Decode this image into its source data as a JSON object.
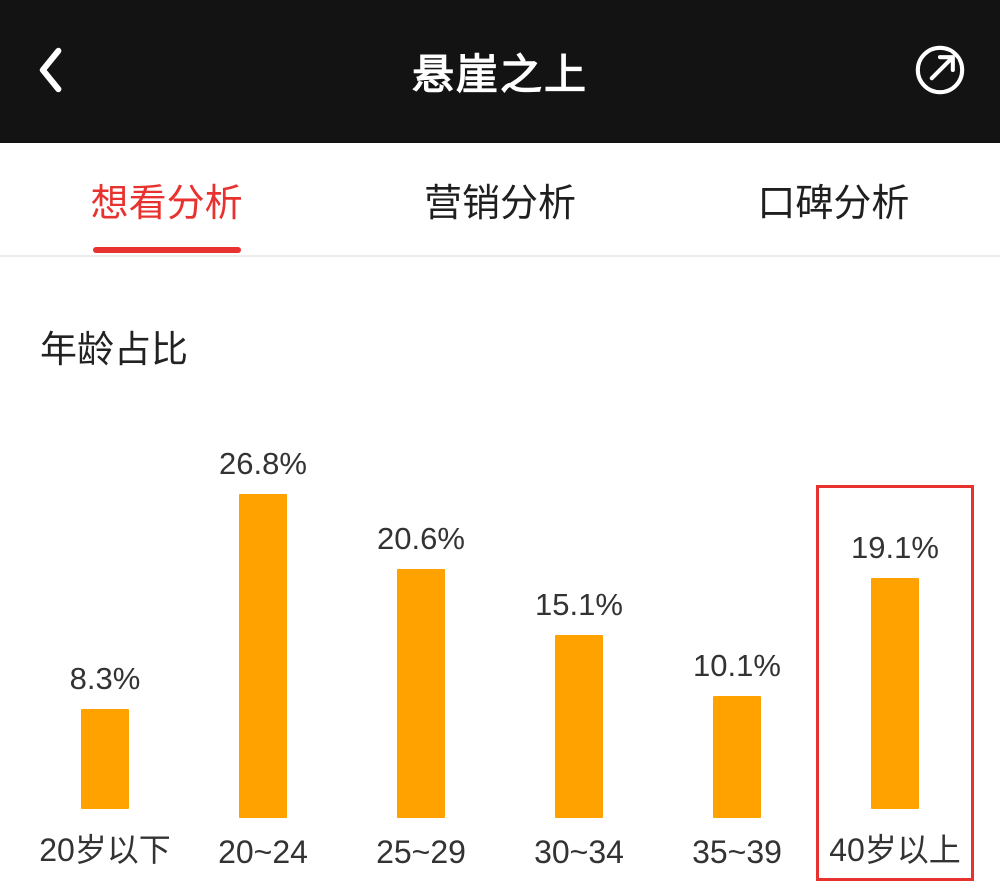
{
  "header": {
    "title": "悬崖之上"
  },
  "tabs": [
    {
      "label": "想看分析",
      "active": true
    },
    {
      "label": "营销分析",
      "active": false
    },
    {
      "label": "口碑分析",
      "active": false
    }
  ],
  "section": {
    "title": "年龄占比"
  },
  "chart_data": {
    "type": "bar",
    "title": "年龄占比",
    "categories": [
      "20岁以下",
      "20~24",
      "25~29",
      "30~34",
      "35~39",
      "40岁以上"
    ],
    "values": [
      8.3,
      26.8,
      20.6,
      15.1,
      10.1,
      19.1
    ],
    "value_labels": [
      "8.3%",
      "26.8%",
      "20.6%",
      "15.1%",
      "10.1%",
      "19.1%"
    ],
    "unit": "%",
    "ylim": [
      0,
      30
    ],
    "grid": false,
    "bar_color": "#FFA200",
    "highlight_index": 5,
    "highlight_color": "#E8322F"
  },
  "colors": {
    "header_bg": "#131313",
    "accent_red": "#E8322F",
    "bar_orange": "#FFA200",
    "text_dark": "#333333"
  }
}
